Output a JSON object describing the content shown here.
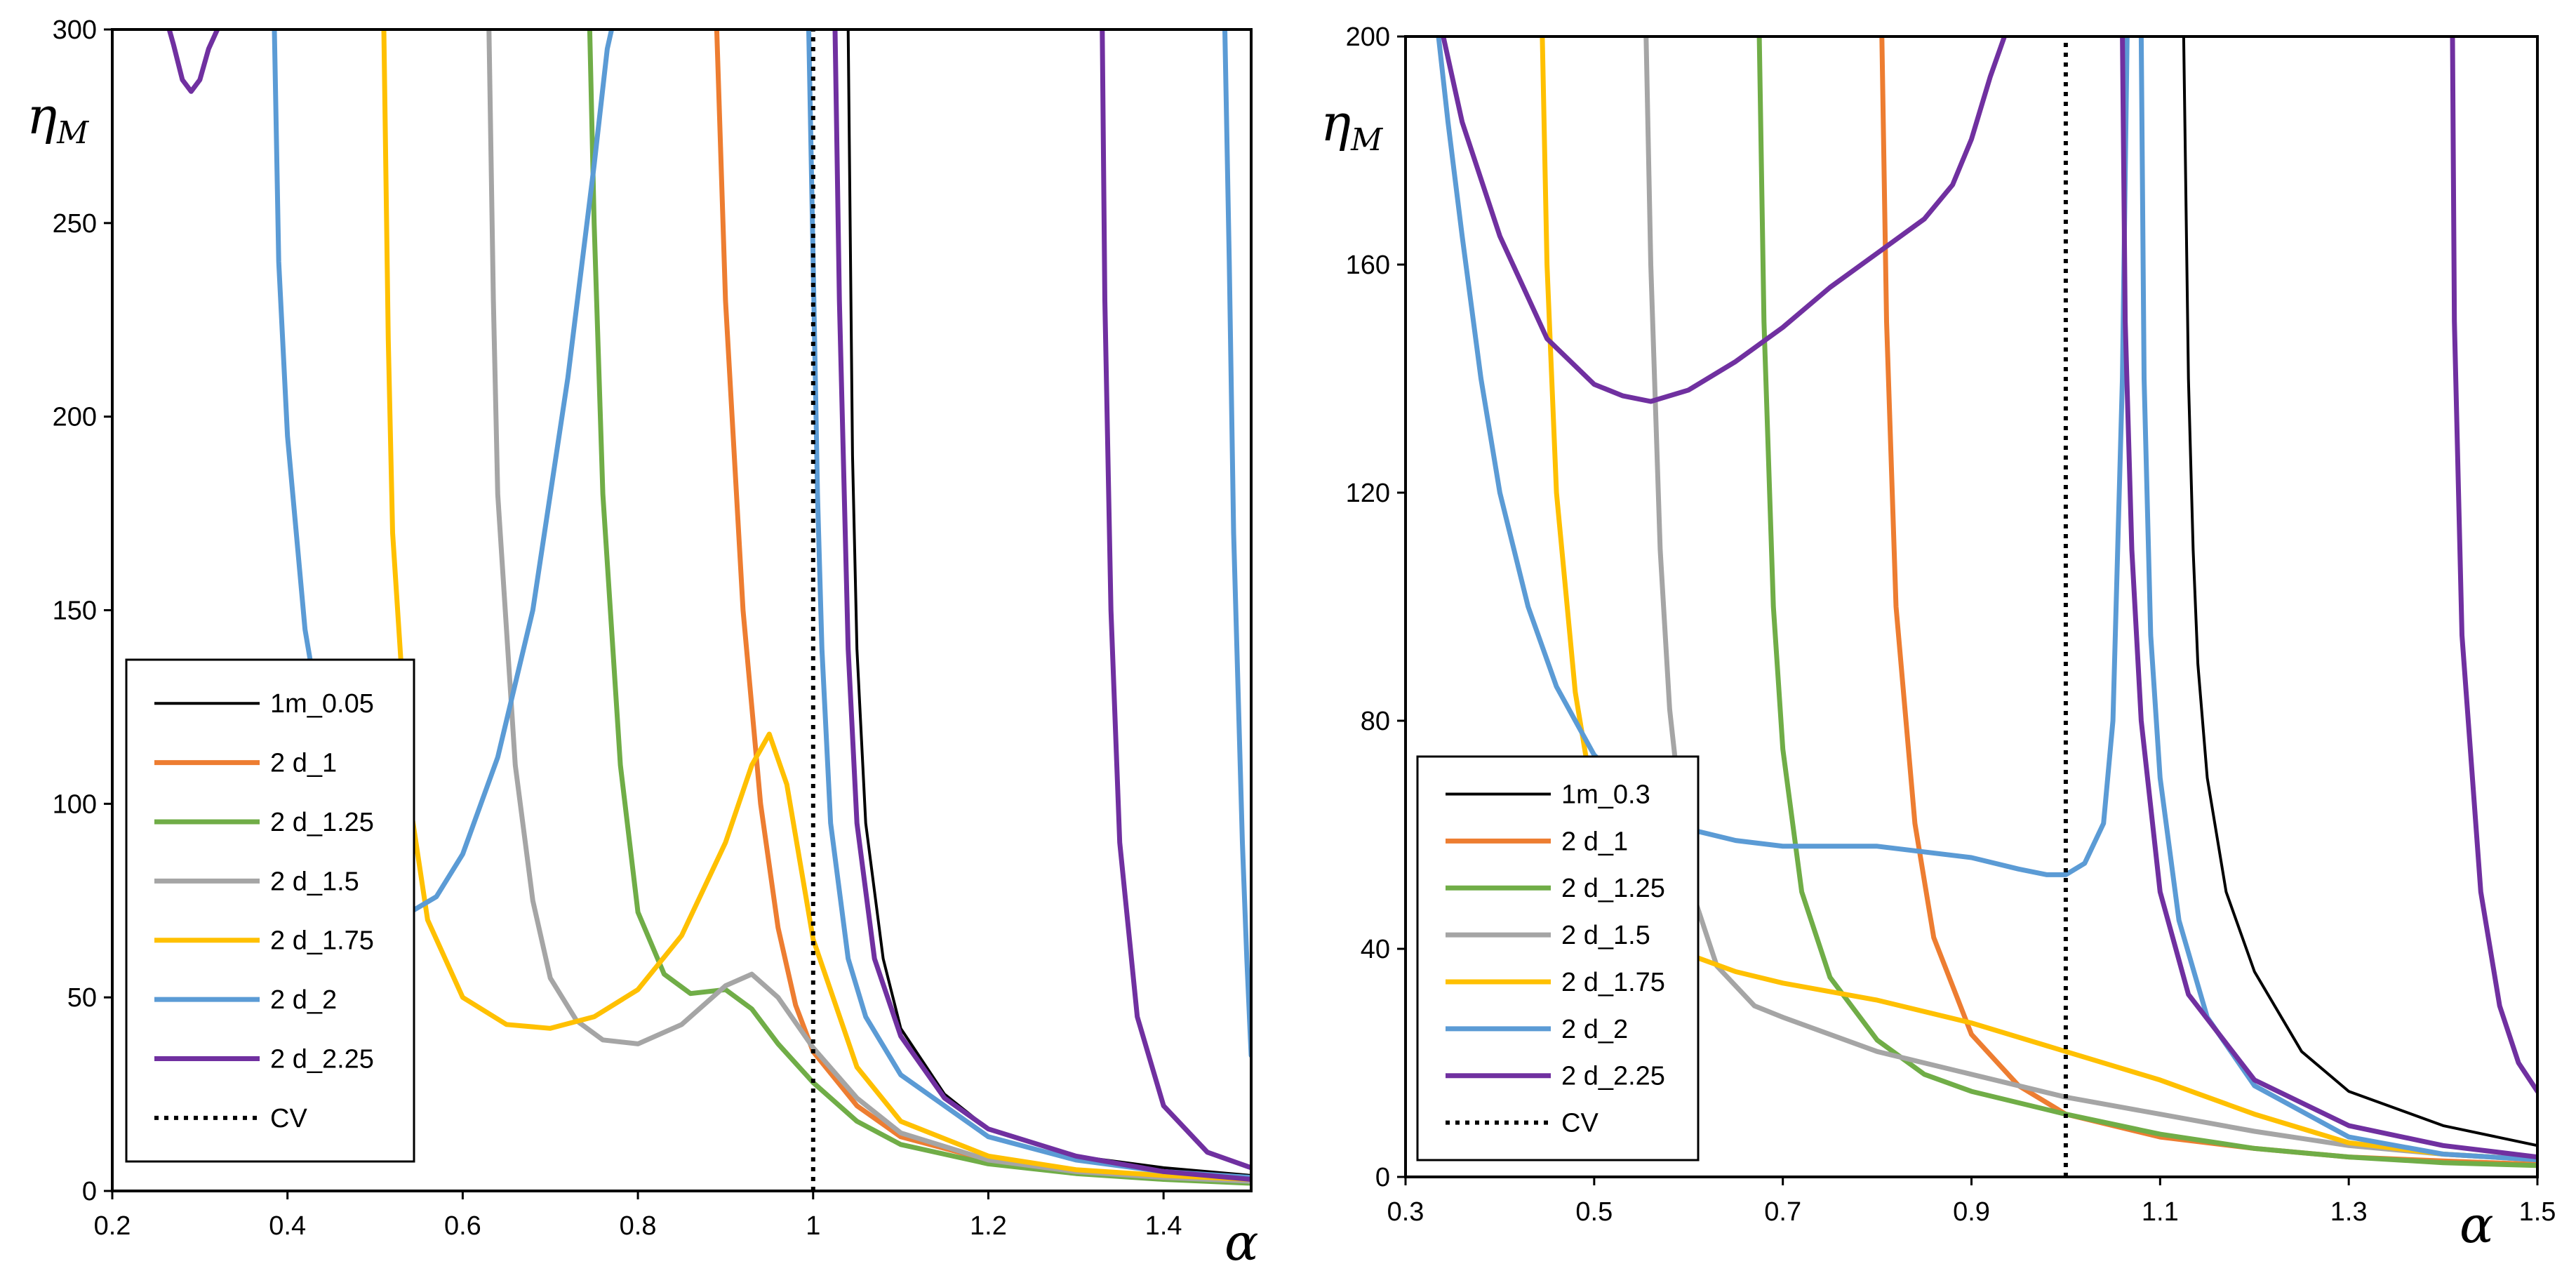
{
  "chart_data": [
    {
      "type": "line",
      "ylabel_symbol": "η",
      "ylabel_subscript": "M",
      "xlabel_symbol": "α",
      "xlim": [
        0.2,
        1.5
      ],
      "ylim": [
        0,
        300
      ],
      "xticks": [
        "0.2",
        "0.4",
        "0.6",
        "0.8",
        "1",
        "1.2",
        "1.4"
      ],
      "yticks": [
        "0",
        "50",
        "100",
        "150",
        "200",
        "250",
        "300"
      ],
      "legend_position": "bottom-left",
      "series": [
        {
          "name": "1m_0.05",
          "color": "#000000",
          "dashed": false,
          "x": [
            1.04,
            1.045,
            1.05,
            1.06,
            1.08,
            1.1,
            1.15,
            1.2,
            1.3,
            1.4,
            1.5
          ],
          "y": [
            300,
            190,
            140,
            95,
            60,
            42,
            25,
            16,
            9,
            6,
            4
          ]
        },
        {
          "name": "2 d_1",
          "color": "#ED7D31",
          "dashed": false,
          "x": [
            0.89,
            0.9,
            0.92,
            0.94,
            0.96,
            0.98,
            1.0,
            1.05,
            1.1,
            1.2,
            1.3,
            1.4,
            1.5
          ],
          "y": [
            300,
            230,
            150,
            100,
            68,
            48,
            36,
            22,
            14,
            8,
            5,
            3.5,
            2.5
          ]
        },
        {
          "name": "2 d_1.25",
          "color": "#70AD47",
          "dashed": false,
          "x": [
            0.745,
            0.75,
            0.76,
            0.78,
            0.8,
            0.83,
            0.86,
            0.9,
            0.93,
            0.96,
            1.0,
            1.05,
            1.1,
            1.2,
            1.3,
            1.4,
            1.5
          ],
          "y": [
            300,
            250,
            180,
            110,
            72,
            56,
            51,
            52,
            47,
            38,
            28,
            18,
            12,
            7,
            4.5,
            3,
            2
          ]
        },
        {
          "name": "2 d_1.5",
          "color": "#A5A5A5",
          "dashed": false,
          "x": [
            0.63,
            0.635,
            0.64,
            0.66,
            0.68,
            0.7,
            0.73,
            0.76,
            0.8,
            0.85,
            0.9,
            0.93,
            0.96,
            1.0,
            1.05,
            1.1,
            1.2,
            1.3,
            1.4,
            1.5
          ],
          "y": [
            300,
            230,
            180,
            110,
            75,
            55,
            44,
            39,
            38,
            43,
            53,
            56,
            50,
            37,
            24,
            15,
            8,
            5,
            3.5,
            2.5
          ]
        },
        {
          "name": "2 d_1.75",
          "color": "#FFC000",
          "dashed": false,
          "x": [
            0.51,
            0.515,
            0.52,
            0.54,
            0.56,
            0.6,
            0.65,
            0.7,
            0.75,
            0.8,
            0.85,
            0.9,
            0.93,
            0.95,
            0.97,
            1.0,
            1.05,
            1.1,
            1.2,
            1.3,
            1.4,
            1.5
          ],
          "y": [
            300,
            220,
            170,
            100,
            70,
            50,
            43,
            42,
            45,
            52,
            66,
            90,
            110,
            118,
            105,
            65,
            32,
            18,
            9,
            5.5,
            4,
            3
          ]
        },
        {
          "name": "2 d_2",
          "color": "#5B9BD5",
          "dashed": false,
          "segments": [
            {
              "x": [
                0.385,
                0.39,
                0.4,
                0.42,
                0.45,
                0.48,
                0.52,
                0.54,
                0.57,
                0.6,
                0.64,
                0.68,
                0.72,
                0.75,
                0.765,
                0.77
              ],
              "y": [
                300,
                240,
                195,
                145,
                105,
                84,
                73,
                72,
                76,
                87,
                112,
                150,
                210,
                265,
                295,
                300
              ]
            },
            {
              "x": [
                0.995,
                1.0,
                1.005,
                1.01,
                1.02,
                1.04,
                1.06,
                1.1,
                1.2,
                1.3,
                1.4,
                1.5
              ],
              "y": [
                300,
                240,
                180,
                140,
                95,
                60,
                45,
                30,
                14,
                8,
                5,
                3.5
              ]
            },
            {
              "x": [
                1.47,
                1.475,
                1.48,
                1.49,
                1.495,
                1.5
              ],
              "y": [
                300,
                240,
                170,
                90,
                60,
                35
              ]
            }
          ]
        },
        {
          "name": "2 d_2.25",
          "color": "#7030A0",
          "dashed": false,
          "segments": [
            {
              "x": [
                0.265,
                0.27,
                0.28,
                0.29,
                0.3,
                0.31,
                0.32
              ],
              "y": [
                300,
                296,
                287,
                284,
                287,
                295,
                300
              ]
            },
            {
              "x": [
                1.025,
                1.03,
                1.04,
                1.05,
                1.07,
                1.1,
                1.15,
                1.2,
                1.3,
                1.4,
                1.5
              ],
              "y": [
                300,
                230,
                140,
                95,
                60,
                40,
                24,
                16,
                9,
                5,
                3
              ]
            },
            {
              "x": [
                1.33,
                1.333,
                1.34,
                1.35,
                1.37,
                1.4,
                1.45,
                1.5
              ],
              "y": [
                300,
                230,
                150,
                90,
                45,
                22,
                10,
                6
              ]
            }
          ]
        },
        {
          "name": "CV",
          "color": "#000000",
          "dashed": true,
          "x": [
            1,
            1
          ],
          "y": [
            0,
            300
          ]
        }
      ]
    },
    {
      "type": "line",
      "ylabel_symbol": "η",
      "ylabel_subscript": "M",
      "xlabel_symbol": "α",
      "xlim": [
        0.3,
        1.5
      ],
      "ylim": [
        0,
        200
      ],
      "xticks": [
        "0.3",
        "0.5",
        "0.7",
        "0.9",
        "1.1",
        "1.3",
        "1.5"
      ],
      "yticks": [
        "0",
        "40",
        "80",
        "120",
        "160",
        "200"
      ],
      "legend_position": "bottom-left",
      "series": [
        {
          "name": "1m_0.3",
          "color": "#000000",
          "dashed": false,
          "x": [
            1.125,
            1.13,
            1.135,
            1.14,
            1.15,
            1.17,
            1.2,
            1.25,
            1.3,
            1.4,
            1.5
          ],
          "y": [
            200,
            140,
            110,
            90,
            70,
            50,
            36,
            22,
            15,
            9,
            5.5
          ]
        },
        {
          "name": "2 d_1",
          "color": "#ED7D31",
          "dashed": false,
          "x": [
            0.805,
            0.81,
            0.82,
            0.84,
            0.86,
            0.9,
            0.95,
            1.0,
            1.1,
            1.2,
            1.3,
            1.4,
            1.5
          ],
          "y": [
            200,
            150,
            100,
            62,
            42,
            25,
            16,
            11,
            7,
            5,
            3.5,
            2.8,
            2.2
          ]
        },
        {
          "name": "2 d_1.25",
          "color": "#70AD47",
          "dashed": false,
          "x": [
            0.675,
            0.68,
            0.69,
            0.7,
            0.72,
            0.75,
            0.8,
            0.85,
            0.9,
            1.0,
            1.1,
            1.2,
            1.3,
            1.4,
            1.5
          ],
          "y": [
            200,
            150,
            100,
            75,
            50,
            35,
            24,
            18,
            15,
            11,
            7.5,
            5,
            3.5,
            2.5,
            2
          ]
        },
        {
          "name": "2 d_1.5",
          "color": "#A5A5A5",
          "dashed": false,
          "x": [
            0.555,
            0.56,
            0.57,
            0.58,
            0.6,
            0.63,
            0.67,
            0.7,
            0.75,
            0.8,
            0.9,
            1.0,
            1.1,
            1.2,
            1.3,
            1.4,
            1.5
          ],
          "y": [
            200,
            160,
            110,
            82,
            52,
            37,
            30,
            28,
            25,
            22,
            18,
            14,
            11,
            8,
            5.5,
            4,
            3
          ]
        },
        {
          "name": "2 d_1.75",
          "color": "#FFC000",
          "dashed": false,
          "x": [
            0.445,
            0.45,
            0.46,
            0.48,
            0.5,
            0.53,
            0.56,
            0.6,
            0.65,
            0.7,
            0.8,
            0.9,
            1.0,
            1.1,
            1.2,
            1.3,
            1.4,
            1.5
          ],
          "y": [
            200,
            160,
            120,
            85,
            65,
            52,
            44,
            39,
            36,
            34,
            31,
            27,
            22,
            17,
            11,
            6,
            4,
            3
          ]
        },
        {
          "name": "2 d_2",
          "color": "#5B9BD5",
          "dashed": false,
          "segments": [
            {
              "x": [
                0.335,
                0.345,
                0.36,
                0.38,
                0.4,
                0.43,
                0.46,
                0.5,
                0.55,
                0.6,
                0.65,
                0.7,
                0.8,
                0.9,
                0.95,
                0.98,
                1.0,
                1.02,
                1.04,
                1.05,
                1.06,
                1.065
              ],
              "y": [
                200,
                185,
                165,
                140,
                120,
                100,
                86,
                74,
                66,
                61,
                59,
                58,
                58,
                56,
                54,
                53,
                53,
                55,
                62,
                80,
                140,
                200
              ]
            },
            {
              "x": [
                1.08,
                1.083,
                1.09,
                1.1,
                1.12,
                1.15,
                1.2,
                1.3,
                1.4,
                1.5
              ],
              "y": [
                200,
                140,
                95,
                70,
                45,
                28,
                16,
                7,
                4,
                3
              ]
            }
          ]
        },
        {
          "name": "2 d_2.25",
          "color": "#7030A0",
          "dashed": false,
          "segments": [
            {
              "x": [
                0.34,
                0.36,
                0.4,
                0.45,
                0.5,
                0.53,
                0.56,
                0.6,
                0.65,
                0.7,
                0.75,
                0.8,
                0.85,
                0.88,
                0.9,
                0.92,
                0.935
              ],
              "y": [
                200,
                185,
                165,
                147,
                139,
                137,
                136,
                138,
                143,
                149,
                156,
                162,
                168,
                174,
                182,
                193,
                200
              ]
            },
            {
              "x": [
                1.06,
                1.063,
                1.07,
                1.08,
                1.1,
                1.13,
                1.2,
                1.3,
                1.4,
                1.5
              ],
              "y": [
                200,
                150,
                110,
                80,
                50,
                32,
                17,
                9,
                5.5,
                3.5
              ]
            },
            {
              "x": [
                1.41,
                1.412,
                1.42,
                1.44,
                1.46,
                1.48,
                1.5
              ],
              "y": [
                200,
                150,
                95,
                50,
                30,
                20,
                15
              ]
            }
          ]
        },
        {
          "name": "CV",
          "color": "#000000",
          "dashed": true,
          "x": [
            1,
            1
          ],
          "y": [
            0,
            200
          ]
        }
      ]
    }
  ]
}
